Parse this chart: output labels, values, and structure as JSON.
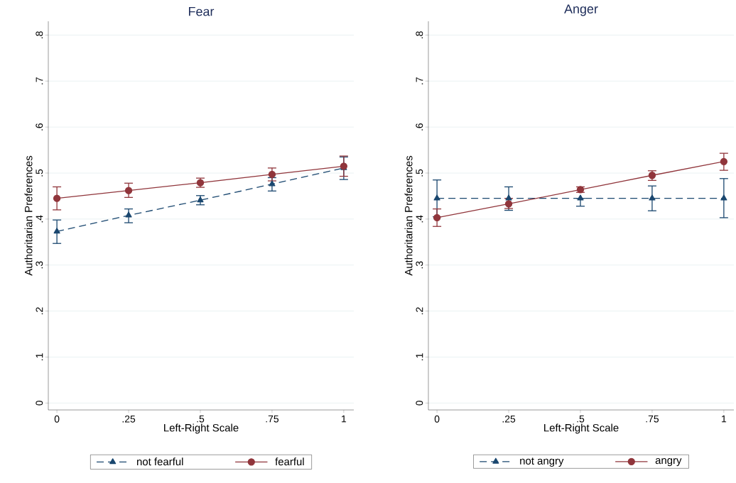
{
  "chart_data": [
    {
      "type": "line",
      "title": "Fear",
      "xlabel": "Left-Right Scale",
      "ylabel": "Authoritarian Preferences",
      "x": [
        0,
        0.25,
        0.5,
        0.75,
        1
      ],
      "xlim": [
        -0.03,
        1.035
      ],
      "ylim": [
        -0.015,
        0.83
      ],
      "xticks": [
        0,
        {
          "value": 0.25,
          "label": ".25"
        },
        {
          "value": 0.5,
          "label": ".5"
        },
        {
          "value": 0.75,
          "label": ".75"
        },
        1
      ],
      "yticks": [
        0,
        {
          "value": 0.1,
          "label": ".1"
        },
        {
          "value": 0.2,
          "label": ".2"
        },
        {
          "value": 0.3,
          "label": ".3"
        },
        {
          "value": 0.4,
          "label": ".4"
        },
        {
          "value": 0.5,
          "label": ".5"
        },
        {
          "value": 0.6,
          "label": ".6"
        },
        {
          "value": 0.7,
          "label": ".7"
        },
        {
          "value": 0.8,
          "label": ".8"
        }
      ],
      "grid": "y",
      "legend": "bottom",
      "series": [
        {
          "name": "not fearful",
          "color": "#1a476f",
          "marker": "triangle",
          "line_style": "dashed",
          "values": [
            0.373,
            0.408,
            0.441,
            0.476,
            0.511
          ],
          "errors": [
            [
              0.347,
              0.398
            ],
            [
              0.392,
              0.422
            ],
            [
              0.431,
              0.451
            ],
            [
              0.461,
              0.49
            ],
            [
              0.486,
              0.535
            ]
          ]
        },
        {
          "name": "fearful",
          "color": "#90353b",
          "marker": "circle",
          "line_style": "solid",
          "values": [
            0.445,
            0.462,
            0.479,
            0.497,
            0.515
          ],
          "errors": [
            [
              0.42,
              0.47
            ],
            [
              0.447,
              0.478
            ],
            [
              0.469,
              0.489
            ],
            [
              0.483,
              0.511
            ],
            [
              0.493,
              0.537
            ]
          ]
        }
      ]
    },
    {
      "type": "line",
      "title": "Anger",
      "xlabel": "Left-Right Scale",
      "ylabel": "Authoritarian Preferences",
      "x": [
        0,
        0.25,
        0.5,
        0.75,
        1
      ],
      "xlim": [
        -0.03,
        1.035
      ],
      "ylim": [
        -0.015,
        0.83
      ],
      "xticks": [
        0,
        {
          "value": 0.25,
          "label": ".25"
        },
        {
          "value": 0.5,
          "label": ".5"
        },
        {
          "value": 0.75,
          "label": ".75"
        },
        1
      ],
      "yticks": [
        0,
        {
          "value": 0.1,
          "label": ".1"
        },
        {
          "value": 0.2,
          "label": ".2"
        },
        {
          "value": 0.3,
          "label": ".3"
        },
        {
          "value": 0.4,
          "label": ".4"
        },
        {
          "value": 0.5,
          "label": ".5"
        },
        {
          "value": 0.6,
          "label": ".6"
        },
        {
          "value": 0.7,
          "label": ".7"
        },
        {
          "value": 0.8,
          "label": ".8"
        }
      ],
      "grid": "y",
      "legend": "bottom",
      "series": [
        {
          "name": "not angry",
          "color": "#1a476f",
          "marker": "triangle",
          "line_style": "dashed",
          "values": [
            0.445,
            0.445,
            0.445,
            0.445,
            0.445
          ],
          "errors": [
            [
              0.405,
              0.485
            ],
            [
              0.419,
              0.47
            ],
            [
              0.428,
              0.445
            ],
            [
              0.418,
              0.472
            ],
            [
              0.403,
              0.488
            ]
          ]
        },
        {
          "name": "angry",
          "color": "#90353b",
          "marker": "circle",
          "line_style": "solid",
          "values": [
            0.403,
            0.433,
            0.464,
            0.495,
            0.525
          ],
          "errors": [
            [
              0.384,
              0.422
            ],
            [
              0.423,
              0.445
            ],
            [
              0.458,
              0.47
            ],
            [
              0.484,
              0.505
            ],
            [
              0.506,
              0.543
            ]
          ]
        }
      ]
    }
  ]
}
